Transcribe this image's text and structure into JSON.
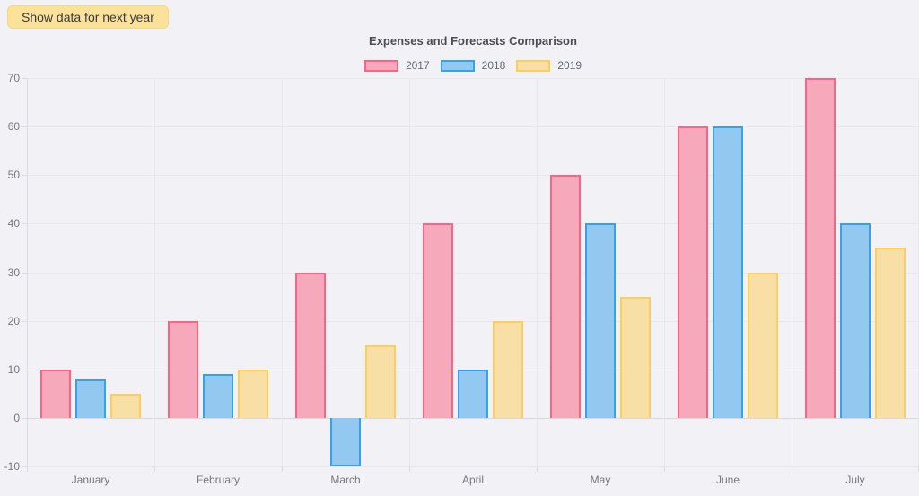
{
  "page": {
    "background": "#F1F1F6"
  },
  "button": {
    "label": "Show data for next year",
    "background": "#FBE29B",
    "text_color": "#3A3A3E"
  },
  "chart_data": {
    "type": "bar",
    "title": "Expenses and Forecasts Comparison",
    "categories": [
      "January",
      "February",
      "March",
      "April",
      "May",
      "June",
      "July"
    ],
    "series": [
      {
        "name": "2017",
        "values": [
          10,
          20,
          30,
          40,
          50,
          60,
          70
        ],
        "fill": "#F7A9BC",
        "border": "#FF6384"
      },
      {
        "name": "2018",
        "values": [
          8,
          9,
          -10,
          10,
          40,
          60,
          40
        ],
        "fill": "#93C9F0",
        "border": "#36A2EB"
      },
      {
        "name": "2019",
        "values": [
          5,
          10,
          15,
          20,
          25,
          30,
          35
        ],
        "fill": "#F8DFA5",
        "border": "#FFCE56"
      }
    ],
    "ylim": [
      -10,
      70
    ],
    "yticks": [
      70,
      60,
      50,
      40,
      30,
      20,
      10,
      0,
      -10
    ],
    "grid": true,
    "legend_position": "top",
    "xlabel": "",
    "ylabel": ""
  }
}
